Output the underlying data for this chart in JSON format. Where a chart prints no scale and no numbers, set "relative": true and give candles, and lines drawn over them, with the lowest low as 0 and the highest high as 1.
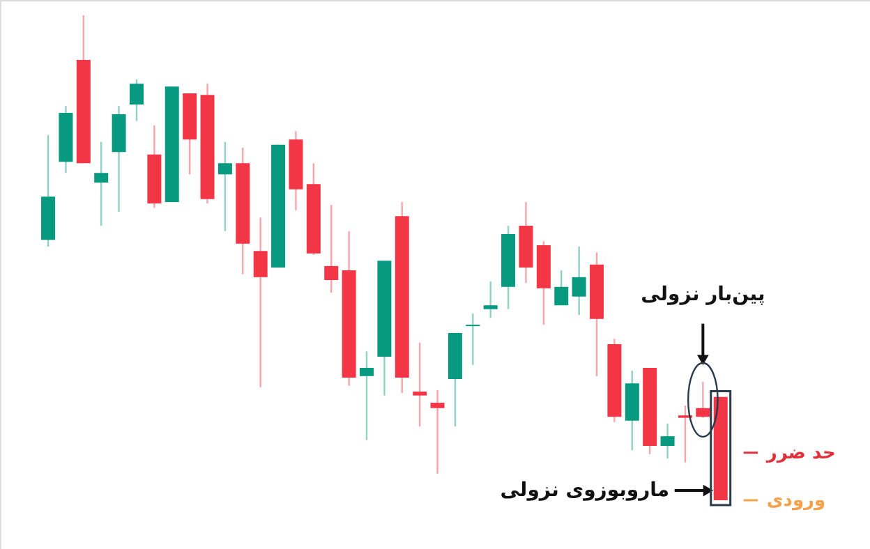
{
  "chart_data": {
    "type": "candlestick",
    "relative": true,
    "categories": [
      null,
      null,
      null,
      null,
      null,
      null,
      null,
      null,
      null,
      null,
      null,
      null,
      null,
      null,
      null,
      null,
      null,
      null,
      null,
      null,
      null,
      null,
      null,
      null,
      null,
      null,
      null,
      null,
      null,
      null,
      null,
      null,
      null,
      null,
      null,
      null,
      null,
      null,
      null
    ],
    "ohlc": [
      [
        0.537,
        0.753,
        0.523,
        0.626
      ],
      [
        0.698,
        0.813,
        0.675,
        0.799
      ],
      [
        0.908,
        1,
        0.695,
        0.695
      ],
      [
        0.655,
        0.739,
        0.566,
        0.675
      ],
      [
        0.718,
        0.813,
        0.595,
        0.796
      ],
      [
        0.816,
        0.868,
        0.782,
        0.859
      ],
      [
        0.713,
        0.773,
        0.603,
        0.612
      ],
      [
        0.615,
        0.853,
        0.615,
        0.853
      ],
      [
        0.839,
        0.839,
        0.672,
        0.744
      ],
      [
        0.836,
        0.859,
        0.612,
        0.621
      ],
      [
        0.672,
        0.739,
        0.555,
        0.695
      ],
      [
        0.695,
        0.727,
        0.466,
        0.529
      ],
      [
        0.514,
        0.583,
        0.233,
        0.46
      ],
      [
        0.48,
        0.733,
        0.48,
        0.733
      ],
      [
        0.744,
        0.761,
        0.598,
        0.641
      ],
      [
        0.652,
        0.695,
        0.506,
        0.509
      ],
      [
        0.483,
        0.609,
        0.428,
        0.454
      ],
      [
        0.474,
        0.555,
        0.236,
        0.253
      ],
      [
        0.256,
        0.307,
        0.124,
        0.273
      ],
      [
        0.296,
        0.494,
        0.216,
        0.494
      ],
      [
        0.586,
        0.615,
        0.221,
        0.253
      ],
      [
        0.224,
        0.325,
        0.152,
        0.216
      ],
      [
        0.201,
        0.227,
        0.055,
        0.19
      ],
      [
        0.25,
        0.345,
        0.152,
        0.345
      ],
      [
        0.359,
        0.385,
        0.279,
        0.362
      ],
      [
        0.394,
        0.451,
        0.376,
        0.402
      ],
      [
        0.44,
        0.566,
        0.394,
        0.549
      ],
      [
        0.566,
        0.615,
        0.448,
        0.48
      ],
      [
        0.526,
        0.534,
        0.362,
        0.437
      ],
      [
        0.402,
        0.474,
        0.402,
        0.44
      ],
      [
        0.42,
        0.523,
        0.382,
        0.46
      ],
      [
        0.486,
        0.511,
        0.256,
        0.374
      ],
      [
        0.322,
        0.333,
        0.161,
        0.172
      ],
      [
        0.164,
        0.267,
        0.103,
        0.241
      ],
      [
        0.273,
        0.273,
        0.095,
        0.112
      ],
      [
        0.112,
        0.158,
        0.086,
        0.132
      ],
      [
        0.175,
        0.195,
        0.078,
        0.17
      ],
      [
        0.19,
        0.244,
        0.17,
        0.172
      ],
      [
        0.213,
        0.213,
        0,
        0
      ]
    ],
    "colors": [
      "#089981",
      "#089981",
      "#f23645",
      "#089981",
      "#089981",
      "#089981",
      "#f23645",
      "#089981",
      "#f23645",
      "#f23645",
      "#089981",
      "#f23645",
      "#f23645",
      "#089981",
      "#f23645",
      "#f23645",
      "#f23645",
      "#f23645",
      "#089981",
      "#089981",
      "#f23645",
      "#f23645",
      "#f23645",
      "#089981",
      "#089981",
      "#089981",
      "#089981",
      "#f23645",
      "#f23645",
      "#089981",
      "#089981",
      "#f23645",
      "#f23645",
      "#089981",
      "#f23645",
      "#089981",
      "#f23645",
      "#f23645",
      "#f23645"
    ],
    "annotations": [
      "پین‌بار نزولی",
      "ماروبوزوی نزولی"
    ],
    "ref_lines": [
      {
        "axis": "y",
        "value": 0.098,
        "label": "حد ضرر",
        "color": "#e0303a"
      },
      {
        "axis": "y",
        "value": 0,
        "label": "ورودی",
        "color": "#f5a04a"
      }
    ]
  }
}
